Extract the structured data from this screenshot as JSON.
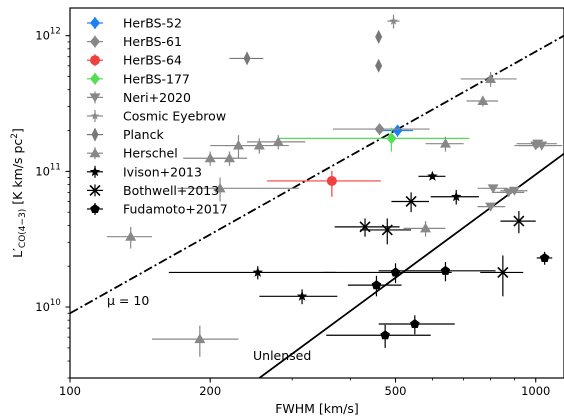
{
  "chart_data": {
    "type": "scatter",
    "xlabel": "FWHM [km/s]",
    "ylabel": "L'CO(4−3) [K km/s pc²]",
    "ylabel_main": "L′",
    "ylabel_sub": "CO(4−3)",
    "ylabel_rest": " [K km/s pc",
    "ylabel_sup": "2",
    "ylabel_end": "]",
    "xscale": "log",
    "yscale": "log",
    "xlim": [
      100,
      1150
    ],
    "ylim": [
      3000000000.0,
      1600000000000.0
    ],
    "xticks": [
      {
        "value": 100,
        "label": "100"
      },
      {
        "value": 200,
        "label": "200"
      },
      {
        "value": 500,
        "label": "500"
      },
      {
        "value": 1000,
        "label": "1000"
      }
    ],
    "yticks": [
      {
        "value": 10000000000.0,
        "base": "10",
        "exp": "10"
      },
      {
        "value": 100000000000.0,
        "base": "10",
        "exp": "11"
      },
      {
        "value": 1000000000000.0,
        "base": "10",
        "exp": "12"
      }
    ],
    "grid": false,
    "legend_position": "top-left",
    "lines": [
      {
        "style": "dashdot",
        "label": "μ = 10",
        "points": [
          [
            100,
            9000000000.0
          ],
          [
            1150,
            1000000000000.0
          ]
        ]
      },
      {
        "style": "solid",
        "label": "Unlensed",
        "points": [
          [
            255,
            3000000000.0
          ],
          [
            1150,
            135000000000.0
          ]
        ]
      }
    ],
    "series": [
      {
        "name": "HerBS-52",
        "marker": "diamond",
        "color": "#1e7ff0",
        "points": [
          {
            "x": 505,
            "y": 200000000000.0,
            "xerr": [
              40,
              40
            ],
            "yerr": [
              20000000000.0,
              20000000000.0
            ]
          }
        ]
      },
      {
        "name": "HerBS-61",
        "marker": "diamond",
        "color": "#888888",
        "points": [
          {
            "x": 462,
            "y": 205000000000.0,
            "xerr": [
              95,
              130
            ],
            "yerr": [
              20000000000.0,
              20000000000.0
            ]
          }
        ]
      },
      {
        "name": "HerBS-64",
        "marker": "circle",
        "color": "#f04040",
        "points": [
          {
            "x": 365,
            "y": 85000000000.0,
            "xerr": [
              100,
              100
            ],
            "yerr": [
              20000000000.0,
              16000000000.0
            ]
          }
        ]
      },
      {
        "name": "HerBS-177",
        "marker": "diamond",
        "color": "#55dd55",
        "points": [
          {
            "x": 490,
            "y": 175000000000.0,
            "xerr": [
              210,
              230
            ],
            "yerr": [
              35000000000.0,
              35000000000.0
            ]
          }
        ]
      },
      {
        "name": "Neri+2020",
        "marker": "triangle-down",
        "color": "#888888",
        "points": [
          {
            "x": 810,
            "y": 75000000000.0,
            "xerr": [
              60,
              60
            ],
            "yerr": [
              5000000000.0,
              5000000000.0
            ]
          },
          {
            "x": 800,
            "y": 55000000000.0,
            "xerr": [
              50,
              60
            ],
            "yerr": [
              4000000000.0,
              4000000000.0
            ]
          },
          {
            "x": 875,
            "y": 70000000000.0,
            "xerr": [
              70,
              70
            ],
            "yerr": [
              4000000000.0,
              4000000000.0
            ]
          },
          {
            "x": 900,
            "y": 72000000000.0,
            "xerr": [
              60,
              60
            ],
            "yerr": [
              4000000000.0,
              4000000000.0
            ]
          },
          {
            "x": 1000,
            "y": 155000000000.0,
            "xerr": [
              100,
              100
            ],
            "yerr": [
              5000000000.0,
              5000000000.0
            ]
          },
          {
            "x": 1010,
            "y": 160000000000.0,
            "xerr": [
              100,
              100
            ],
            "yerr": [
              5000000000.0,
              5000000000.0
            ]
          },
          {
            "x": 1030,
            "y": 155000000000.0,
            "xerr": [
              110,
              110
            ],
            "yerr": [
              5000000000.0,
              5000000000.0
            ]
          }
        ]
      },
      {
        "name": "Cosmic Eyebrow",
        "marker": "star-small",
        "color": "#888888",
        "points": [
          {
            "x": 495,
            "y": 1280000000000.0,
            "xerr": [
              15,
              15
            ],
            "yerr": [
              150000000000.0,
              150000000000.0
            ]
          }
        ]
      },
      {
        "name": "Planck",
        "marker": "diamond-thin",
        "color": "#777777",
        "points": [
          {
            "x": 460,
            "y": 980000000000.0,
            "xerr": [
              0,
              0
            ],
            "yerr": [
              0,
              0
            ]
          },
          {
            "x": 460,
            "y": 600000000000.0,
            "xerr": [
              0,
              0
            ],
            "yerr": [
              0,
              0
            ]
          },
          {
            "x": 240,
            "y": 680000000000.0,
            "xerr": [
              20,
              20
            ],
            "yerr": [
              0,
              0
            ]
          }
        ]
      },
      {
        "name": "Herschel",
        "marker": "triangle-up",
        "color": "#888888",
        "points": [
          {
            "x": 800,
            "y": 480000000000.0,
            "xerr": [
              110,
              110
            ],
            "yerr": [
              60000000000.0,
              60000000000.0
            ]
          },
          {
            "x": 770,
            "y": 330000000000.0,
            "xerr": [
              60,
              60
            ],
            "yerr": [
              30000000000.0,
              30000000000.0
            ]
          },
          {
            "x": 640,
            "y": 160000000000.0,
            "xerr": [
              60,
              60
            ],
            "yerr": [
              20000000000.0,
              20000000000.0
            ]
          },
          {
            "x": 280,
            "y": 165000000000.0,
            "xerr": [
              40,
              40
            ],
            "yerr": [
              20000000000.0,
              20000000000.0
            ]
          },
          {
            "x": 255,
            "y": 155000000000.0,
            "xerr": [
              40,
              40
            ],
            "yerr": [
              20000000000.0,
              20000000000.0
            ]
          },
          {
            "x": 230,
            "y": 155000000000.0,
            "xerr": [
              30,
              30
            ],
            "yerr": [
              30000000000.0,
              30000000000.0
            ]
          },
          {
            "x": 200,
            "y": 125000000000.0,
            "xerr": [
              25,
              25
            ],
            "yerr": [
              15000000000.0,
              15000000000.0
            ]
          },
          {
            "x": 220,
            "y": 125000000000.0,
            "xerr": [
              20,
              20
            ],
            "yerr": [
              15000000000.0,
              15000000000.0
            ]
          },
          {
            "x": 210,
            "y": 75000000000.0,
            "xerr": [
              40,
              100
            ],
            "yerr": [
              15000000000.0,
              15000000000.0
            ]
          },
          {
            "x": 580,
            "y": 38000000000.0,
            "xerr": [
              60,
              60
            ],
            "yerr": [
              5000000000.0,
              5000000000.0
            ]
          },
          {
            "x": 135,
            "y": 33000000000.0,
            "xerr": [
              15,
              15
            ],
            "yerr": [
              6000000000.0,
              6000000000.0
            ]
          },
          {
            "x": 190,
            "y": 5800000000.0,
            "xerr": [
              40,
              40
            ],
            "yerr": [
              1500000000.0,
              1500000000.0
            ]
          }
        ]
      },
      {
        "name": "Ivison+2013",
        "marker": "star",
        "color": "#000000",
        "points": [
          {
            "x": 253,
            "y": 18000000000.0,
            "xerr": [
              90,
              120
            ],
            "yerr": [
              2000000000.0,
              2000000000.0
            ]
          },
          {
            "x": 315,
            "y": 12000000000.0,
            "xerr": [
              60,
              60
            ],
            "yerr": [
              1500000000.0,
              1500000000.0
            ]
          },
          {
            "x": 600,
            "y": 92000000000.0,
            "xerr": [
              40,
              40
            ],
            "yerr": [
              4000000000.0,
              4000000000.0
            ]
          },
          {
            "x": 675,
            "y": 65000000000.0,
            "xerr": [
              80,
              80
            ],
            "yerr": [
              8000000000.0,
              8000000000.0
            ]
          }
        ]
      },
      {
        "name": "Bothwell+2013",
        "marker": "x",
        "color": "#000000",
        "points": [
          {
            "x": 430,
            "y": 39000000000.0,
            "xerr": [
              60,
              80
            ],
            "yerr": [
              6000000000.0,
              6000000000.0
            ]
          },
          {
            "x": 480,
            "y": 37000000000.0,
            "xerr": [
              60,
              60
            ],
            "yerr": [
              8000000000.0,
              8000000000.0
            ]
          },
          {
            "x": 540,
            "y": 60000000000.0,
            "xerr": [
              50,
              50
            ],
            "yerr": [
              10000000000.0,
              10000000000.0
            ]
          },
          {
            "x": 920,
            "y": 43000000000.0,
            "xerr": [
              80,
              80
            ],
            "yerr": [
              8000000000.0,
              8000000000.0
            ]
          },
          {
            "x": 850,
            "y": 18000000000.0,
            "xerr": [
              90,
              90
            ],
            "yerr": [
              6000000000.0,
              6000000000.0
            ]
          }
        ]
      },
      {
        "name": "Fudamoto+2017",
        "marker": "pentagon",
        "color": "#000000",
        "points": [
          {
            "x": 455,
            "y": 14500000000.0,
            "xerr": [
              60,
              60
            ],
            "yerr": [
              2500000000.0,
              2500000000.0
            ]
          },
          {
            "x": 500,
            "y": 18000000000.0,
            "xerr": [
              150,
              160
            ],
            "yerr": [
              3000000000.0,
              3000000000.0
            ]
          },
          {
            "x": 640,
            "y": 18500000000.0,
            "xerr": [
              180,
              180
            ],
            "yerr": [
              3000000000.0,
              3000000000.0
            ]
          },
          {
            "x": 550,
            "y": 7500000000.0,
            "xerr": [
              90,
              120
            ],
            "yerr": [
              1200000000.0,
              1200000000.0
            ]
          },
          {
            "x": 475,
            "y": 6200000000.0,
            "xerr": [
              120,
              120
            ],
            "yerr": [
              1200000000.0,
              1200000000.0
            ]
          },
          {
            "x": 1045,
            "y": 23000000000.0,
            "xerr": [
              40,
              40
            ],
            "yerr": [
              2500000000.0,
              2500000000.0
            ]
          }
        ]
      }
    ]
  }
}
